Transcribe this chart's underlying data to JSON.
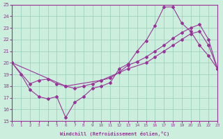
{
  "xlabel": "Windchill (Refroidissement éolien,°C)",
  "xlim": [
    0,
    23
  ],
  "ylim": [
    15,
    25
  ],
  "yticks": [
    15,
    16,
    17,
    18,
    19,
    20,
    21,
    22,
    23,
    24,
    25
  ],
  "xticks": [
    0,
    1,
    2,
    3,
    4,
    5,
    6,
    7,
    8,
    9,
    10,
    11,
    12,
    13,
    14,
    15,
    16,
    17,
    18,
    19,
    20,
    21,
    22,
    23
  ],
  "bg_color": "#cceedd",
  "grid_color": "#99ccbb",
  "line_color": "#993399",
  "line1_x": [
    0,
    1,
    2,
    3,
    4,
    5,
    6,
    7,
    8,
    9,
    10,
    11,
    12,
    13,
    14,
    15,
    16,
    17,
    18,
    19,
    20,
    21,
    22,
    23
  ],
  "line1_y": [
    20.0,
    19.0,
    17.7,
    17.1,
    16.9,
    17.1,
    15.3,
    16.6,
    17.1,
    17.8,
    18.0,
    18.3,
    19.5,
    19.9,
    21.0,
    21.9,
    23.2,
    24.8,
    24.8,
    23.4,
    22.7,
    21.5,
    20.6,
    19.5
  ],
  "line2_x": [
    0,
    2,
    3,
    4,
    5,
    6,
    7,
    8,
    9,
    10,
    11,
    12,
    13,
    14,
    15,
    16,
    17,
    18,
    19,
    20,
    21,
    22,
    23
  ],
  "line2_y": [
    20.0,
    18.2,
    18.5,
    18.6,
    18.2,
    18.0,
    17.8,
    18.0,
    18.2,
    18.5,
    18.7,
    19.2,
    19.8,
    20.1,
    20.5,
    21.0,
    21.5,
    22.1,
    22.6,
    23.0,
    23.3,
    22.0,
    19.5
  ],
  "line3_x": [
    0,
    6,
    10,
    13,
    15,
    16,
    17,
    18,
    19,
    20,
    21,
    22,
    23
  ],
  "line3_y": [
    20.0,
    18.0,
    18.5,
    19.5,
    20.0,
    20.5,
    21.0,
    21.5,
    22.0,
    22.5,
    22.7,
    21.5,
    19.5
  ]
}
